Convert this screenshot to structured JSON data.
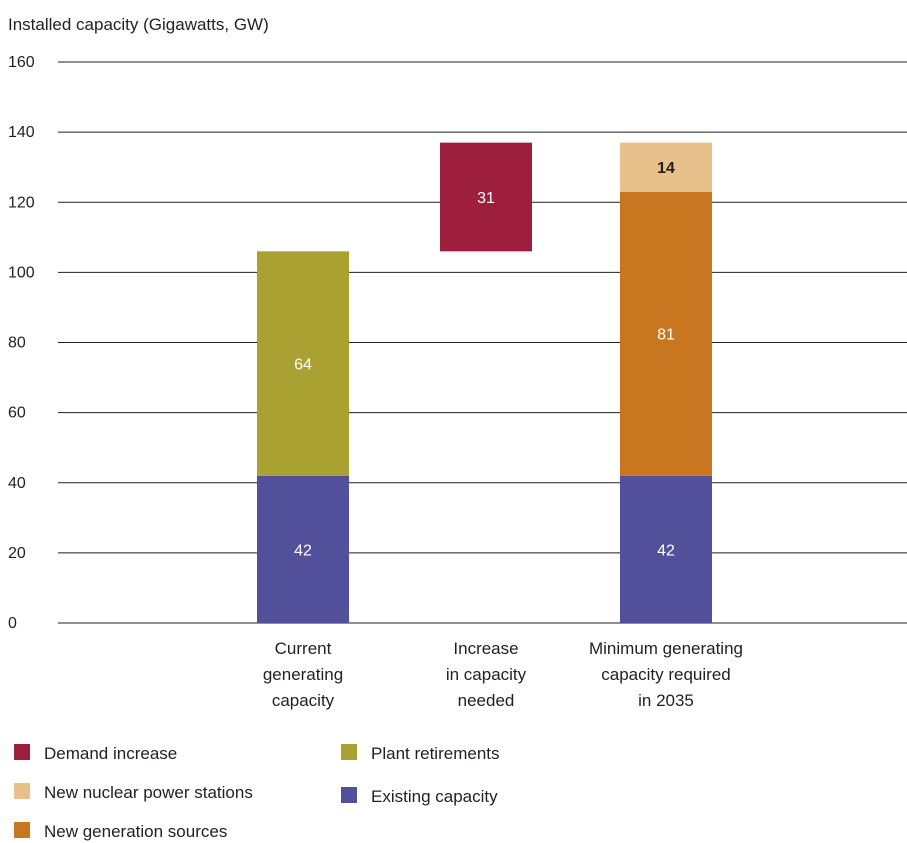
{
  "chart_data": {
    "type": "bar",
    "stacked": true,
    "title": "",
    "ylabel": "Installed capacity (Gigawatts, GW)",
    "xlabel": "",
    "ylim": [
      0,
      160
    ],
    "yticks": [
      0,
      20,
      40,
      60,
      80,
      100,
      120,
      140,
      160
    ],
    "grid": true,
    "categories": [
      [
        "Current",
        "generating",
        "capacity"
      ],
      [
        "Increase",
        "in capacity",
        "needed"
      ],
      [
        "Minimum generating",
        "capacity required",
        "in 2035"
      ]
    ],
    "series": [
      {
        "name": "Existing capacity",
        "color": "#52509a",
        "label_color": "#ffffff",
        "segments": [
          {
            "category": 0,
            "base": 0,
            "value": 42
          },
          {
            "category": 2,
            "base": 0,
            "value": 42
          }
        ]
      },
      {
        "name": "Plant retirements",
        "color": "#a9a131",
        "label_color": "#ffffff",
        "segments": [
          {
            "category": 0,
            "base": 42,
            "value": 64
          }
        ]
      },
      {
        "name": "Demand increase",
        "color": "#9e1f3d",
        "label_color": "#ffffff",
        "segments": [
          {
            "category": 1,
            "base": 106,
            "value": 31
          }
        ]
      },
      {
        "name": "New generation sources",
        "color": "#c87720",
        "label_color": "#ffffff",
        "segments": [
          {
            "category": 2,
            "base": 42,
            "value": 81
          }
        ]
      },
      {
        "name": "New nuclear power stations",
        "color": "#e8c08c",
        "label_color": "#231f20",
        "segments": [
          {
            "category": 2,
            "base": 123,
            "value": 14
          }
        ]
      }
    ],
    "legend": {
      "placement": "bottom",
      "items": [
        {
          "name": "Demand increase",
          "color": "#9e1f3d"
        },
        {
          "name": "New nuclear power stations",
          "color": "#e8c08c"
        },
        {
          "name": "New generation sources",
          "color": "#c87720"
        },
        {
          "name": "Plant retirements",
          "color": "#a9a131"
        },
        {
          "name": "Existing capacity",
          "color": "#52509a"
        }
      ]
    }
  }
}
